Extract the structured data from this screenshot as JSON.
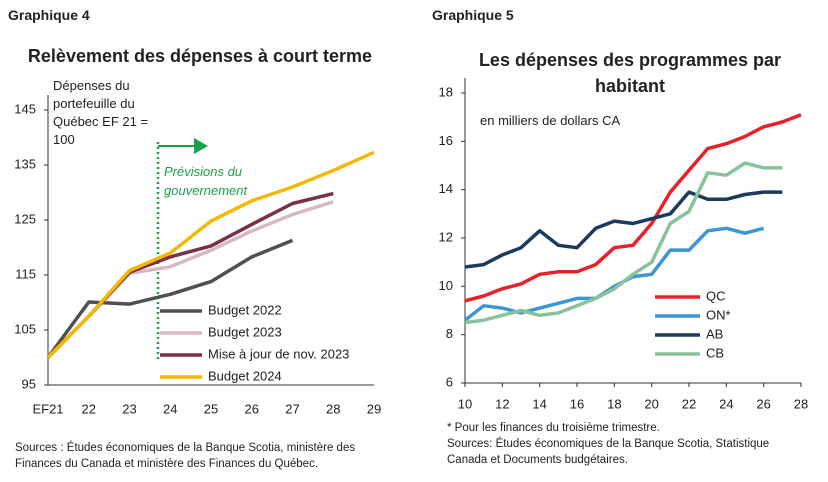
{
  "chart_data": [
    {
      "type": "line",
      "label": "Graphique 4",
      "title": "Relèvement des dépenses à court terme",
      "ylabel": "Dépenses du portefeuille du Québec EF 21 = 100",
      "annotation": "Prévisions du gouvernement",
      "sources": "Sources : Études économiques de la Banque Scotia, ministère des Finances du Canada et ministère des Finances du Québec.",
      "categories": [
        "EF21",
        "22",
        "23",
        "24",
        "25",
        "26",
        "27",
        "28",
        "29"
      ],
      "ylim": [
        95,
        145
      ],
      "yticks": [
        95,
        105,
        115,
        125,
        135,
        145
      ],
      "grid": false,
      "legend": "lower right",
      "series": [
        {
          "name": "Budget 2022",
          "color": "#505050",
          "values": [
            100,
            110.1,
            109.7,
            111.5,
            113.8,
            118.3,
            121.3,
            null,
            null
          ]
        },
        {
          "name": "Budget 2023",
          "color": "#d9b8c4",
          "values": [
            100,
            107.5,
            115.3,
            116.5,
            119.5,
            123,
            126,
            128.3,
            null
          ]
        },
        {
          "name": "Mise à jour de nov. 2023",
          "color": "#7a3048",
          "values": [
            100,
            107.5,
            115.5,
            118.3,
            120.3,
            124.2,
            128,
            129.8,
            null
          ]
        },
        {
          "name": "Budget 2024",
          "color": "#f5b800",
          "values": [
            100,
            107.5,
            115.8,
            119,
            124.8,
            128.5,
            131,
            134,
            137.3
          ]
        }
      ]
    },
    {
      "type": "line",
      "label": "Graphique 5",
      "title": "Les dépenses des programmes par habitant",
      "subtitle": "en milliers de dollars CA",
      "footnote": "* Pour les finances du troisième trimestre.",
      "sources": "Sources: Études économiques de la Banque Scotia, Statistique Canada et Documents budgétaires.",
      "x": [
        10,
        11,
        12,
        13,
        14,
        15,
        16,
        17,
        18,
        19,
        20,
        21,
        22,
        23,
        24,
        25,
        26,
        27,
        28
      ],
      "xlim": [
        10,
        28
      ],
      "xticks": [
        10,
        12,
        14,
        16,
        18,
        20,
        22,
        24,
        26,
        28
      ],
      "ylim": [
        6,
        18
      ],
      "yticks": [
        6,
        8,
        10,
        12,
        14,
        16,
        18
      ],
      "grid": false,
      "legend": "lower right",
      "series": [
        {
          "name": "QC",
          "color": "#e8202a",
          "values": [
            9.4,
            9.6,
            9.9,
            10.1,
            10.5,
            10.6,
            10.6,
            10.9,
            11.6,
            11.7,
            12.6,
            13.9,
            14.8,
            15.7,
            15.9,
            16.2,
            16.6,
            16.8,
            17.1
          ]
        },
        {
          "name": "ON*",
          "color": "#3d96d2",
          "values": [
            8.6,
            9.2,
            9.1,
            8.9,
            9.1,
            9.3,
            9.5,
            9.5,
            10.0,
            10.4,
            10.5,
            11.5,
            11.5,
            12.3,
            12.4,
            12.2,
            12.4,
            null,
            null
          ]
        },
        {
          "name": "AB",
          "color": "#1c3a5e",
          "values": [
            10.8,
            10.9,
            11.3,
            11.6,
            12.3,
            11.7,
            11.6,
            12.4,
            12.7,
            12.6,
            12.8,
            13.0,
            13.9,
            13.6,
            13.6,
            13.8,
            13.9,
            13.9,
            null
          ]
        },
        {
          "name": "CB",
          "color": "#86c39a",
          "values": [
            8.5,
            8.6,
            8.8,
            9.0,
            8.8,
            8.9,
            9.2,
            9.5,
            9.9,
            10.5,
            11.0,
            12.6,
            13.1,
            14.7,
            14.6,
            15.1,
            14.9,
            14.9,
            null
          ]
        }
      ]
    }
  ]
}
